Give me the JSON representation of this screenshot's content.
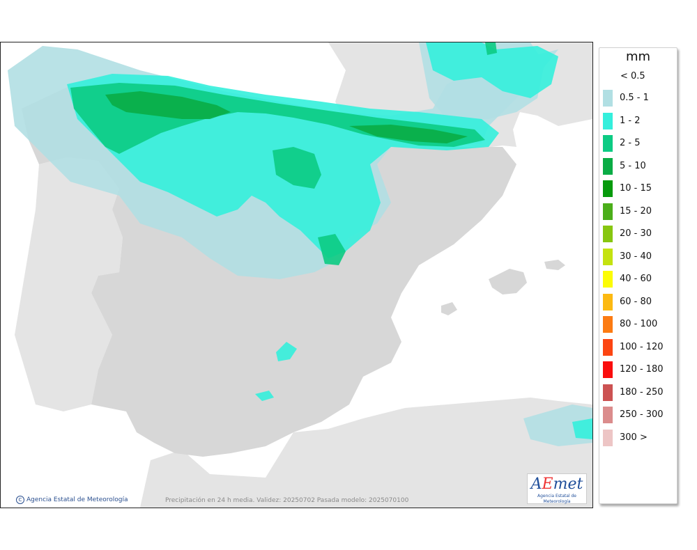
{
  "map": {
    "footer_caption": "Precipitación en 24 h media. Validez: 20250702 Pasada modelo: 2025070100",
    "copyright": "Agencia Estatal de Meteorología",
    "logo": {
      "word_a": "A",
      "word_e": "E",
      "word_rest": "met",
      "subtitle": "Agencia Estatal de Meteorología"
    },
    "colors": {
      "sea": "#ffffff",
      "foreign_land": "#e4e4e4",
      "iberia_land": "#d7d7d7",
      "border": "#333333"
    }
  },
  "legend": {
    "unit": "mm",
    "first_label": "< 0.5",
    "classes": [
      {
        "label": "0.5 - 1",
        "color": "#b1dfe3"
      },
      {
        "label": "1 - 2",
        "color": "#34efdc"
      },
      {
        "label": "2 - 5",
        "color": "#0ccb83"
      },
      {
        "label": "5 - 10",
        "color": "#0aac45"
      },
      {
        "label": "10 - 15",
        "color": "#069a0c"
      },
      {
        "label": "15 - 20",
        "color": "#4bae1a"
      },
      {
        "label": "20 - 30",
        "color": "#87c610"
      },
      {
        "label": "30 - 40",
        "color": "#c4e210"
      },
      {
        "label": "40 - 60",
        "color": "#fcfc05"
      },
      {
        "label": "60 - 80",
        "color": "#fcb912"
      },
      {
        "label": "80 - 100",
        "color": "#fc7b12"
      },
      {
        "label": "100 - 120",
        "color": "#fc4512"
      },
      {
        "label": "120 - 180",
        "color": "#fa0d0d"
      },
      {
        "label": "180 - 250",
        "color": "#cc5252"
      },
      {
        "label": "250 - 300",
        "color": "#db8c8c"
      },
      {
        "label": "300 >",
        "color": "#edc5c5"
      }
    ]
  }
}
